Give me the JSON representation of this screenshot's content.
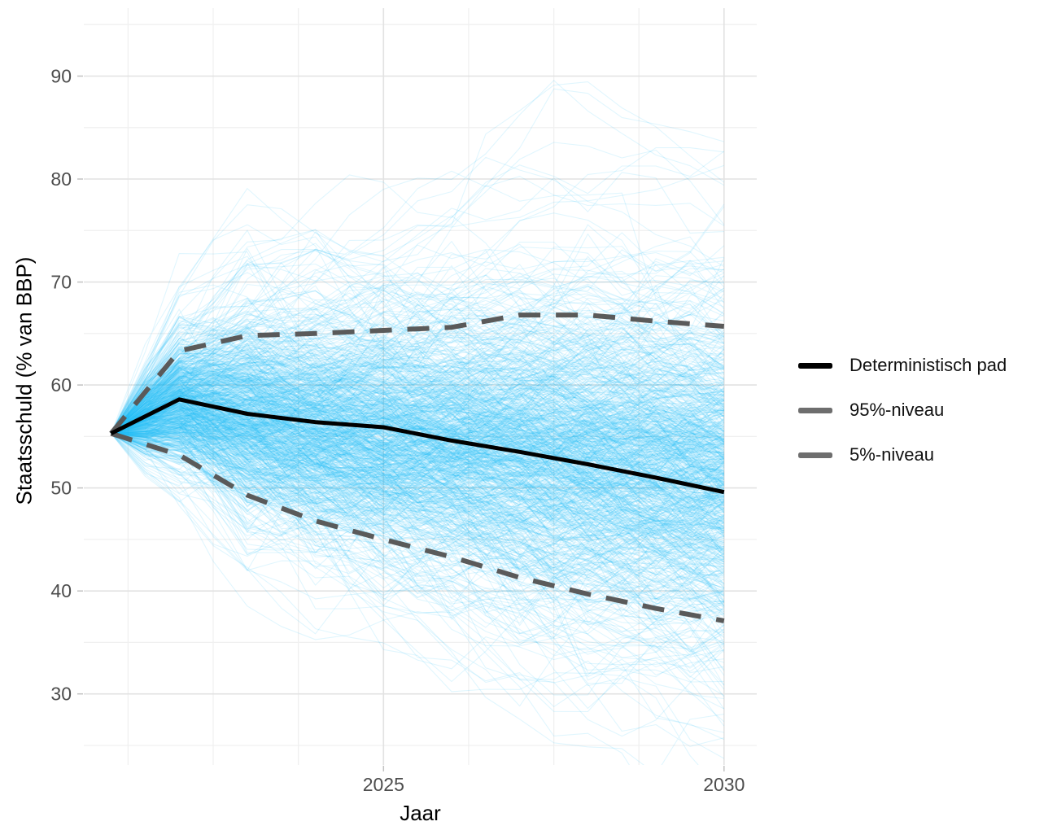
{
  "page": {
    "background": "#ffffff"
  },
  "chart_data": {
    "type": "line",
    "title": "",
    "xlabel": "Jaar",
    "ylabel": "Staatsschuld (% van BBP)",
    "x": [
      2021,
      2022,
      2023,
      2024,
      2025,
      2026,
      2027,
      2028,
      2029,
      2030
    ],
    "xlim": [
      2020.6,
      2030.48
    ],
    "ylim": [
      23.1,
      96.6
    ],
    "grid": true,
    "legend_position": "right",
    "x_major_ticks": [
      2025,
      2030
    ],
    "x_major_tick_labels": [
      "2025",
      "2030"
    ],
    "x_minor_gridlines": [
      2021.25,
      2022.5,
      2023.75,
      2026.25,
      2027.5,
      2028.75
    ],
    "y_major_ticks": [
      30,
      40,
      50,
      60,
      70,
      80,
      90
    ],
    "y_major_tick_labels": [
      "30",
      "40",
      "50",
      "60",
      "70",
      "80",
      "90"
    ],
    "y_minor_gridlines": [
      25,
      35,
      45,
      55,
      65,
      75,
      85,
      95
    ],
    "series": [
      {
        "name": "Deterministisch pad",
        "role": "deterministic",
        "style": "solid",
        "color": "#000000",
        "stroke_width": 5,
        "values": [
          55.3,
          58.6,
          57.2,
          56.4,
          55.9,
          54.6,
          53.5,
          52.3,
          51.0,
          49.6
        ]
      },
      {
        "name": "95%-niveau",
        "role": "p95",
        "style": "dashed",
        "color": "#5a5a5a",
        "stroke_width": 6,
        "values": [
          55.3,
          63.3,
          64.8,
          65.0,
          65.3,
          65.6,
          66.8,
          66.8,
          66.2,
          65.7
        ]
      },
      {
        "name": "5%-niveau",
        "role": "p5",
        "style": "dashed",
        "color": "#5a5a5a",
        "stroke_width": 6,
        "values": [
          55.3,
          53.2,
          49.3,
          46.8,
          45.0,
          43.3,
          41.3,
          39.7,
          38.3,
          37.1
        ]
      }
    ],
    "simulations": {
      "description": "Stochastic debt paths fanning out from 55.3% of GDP in 2021",
      "count": 900,
      "seed": 20240613,
      "start_value": 55.3,
      "color": "#00b3f3",
      "opacity": 0.12,
      "stroke_width": 1.1
    },
    "colors": {
      "grid_major": "#e2e2e2",
      "grid_minor": "#f0f0f0",
      "tick_text": "#4d4d4d",
      "tick_mark": "#c2c2c2"
    }
  },
  "legend": {
    "items": [
      {
        "label": "Deterministisch pad",
        "swatch_color": "#000000"
      },
      {
        "label": "95%-niveau",
        "swatch_color": "#6e6e6e"
      },
      {
        "label": "5%-niveau",
        "swatch_color": "#6e6e6e"
      }
    ]
  }
}
